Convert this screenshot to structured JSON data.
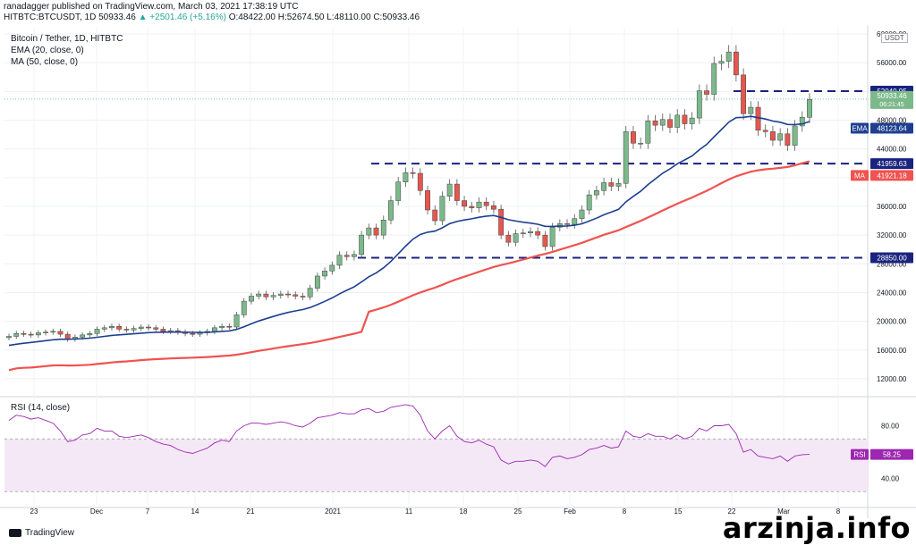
{
  "header": {
    "publish_line": "ranadagger published on TradingView.com, March 03, 2021 17:38:19 UTC",
    "symbol": "HITBTC:BTCUSDT, 1D",
    "price": "50933.46",
    "change": "▲ +2501.46 (+5.16%)",
    "ohlc": "O:48422.00 H:52674.50 L:48110.00 C:50933.46"
  },
  "legend": {
    "title": "Bitcoin / Tether, 1D, HITBTC",
    "ema": "EMA (20, close, 0)",
    "ma": "MA (50, close, 0)",
    "rsi": "RSI (14, close)"
  },
  "currency_badge": "USDT",
  "brand": "TradingView",
  "watermark": "arzinja.info",
  "colors": {
    "up": "#26a69a",
    "down": "#ef5350",
    "ema": "#2962ff",
    "ma": "#ef5350",
    "rsi": "#9c27b0",
    "level": "#1a237e"
  },
  "chart_data": {
    "type": "candlestick",
    "x_ticks": [
      "23",
      "Dec",
      "7",
      "14",
      "21",
      "2021",
      "11",
      "18",
      "25",
      "Feb",
      "8",
      "15",
      "22",
      "Mar",
      "8"
    ],
    "y_ticks": [
      12000,
      16000,
      20000,
      24000,
      28000,
      32000,
      36000,
      40000,
      44000,
      48000,
      52000,
      56000,
      60000
    ],
    "ylim": [
      10000,
      61000
    ],
    "price_labels": [
      {
        "label": "52040.95",
        "value": 52040.95,
        "kind": "level"
      },
      {
        "label": "50933.46",
        "value": 50933.46,
        "kind": "last",
        "time": "06:21:45"
      },
      {
        "label": "EMA",
        "value": 48123.64,
        "text": "48123.64",
        "kind": "ema"
      },
      {
        "label": "41959.63",
        "value": 41959.63,
        "kind": "level"
      },
      {
        "label": "MA",
        "value": 41921.18,
        "text": "41921.18",
        "kind": "ma"
      },
      {
        "label": "28850.00",
        "value": 28850.0,
        "kind": "level"
      }
    ],
    "support_resistance": [
      52040.95,
      41959.63,
      28850.0
    ],
    "closes": [
      17900,
      18300,
      18200,
      18100,
      18400,
      18500,
      18600,
      18200,
      17500,
      17800,
      18100,
      18300,
      18900,
      19100,
      19300,
      18900,
      18800,
      19000,
      19200,
      19100,
      18900,
      18600,
      18700,
      18500,
      18300,
      18200,
      18400,
      18600,
      19100,
      19300,
      19200,
      20900,
      22800,
      23500,
      23800,
      23400,
      23600,
      23800,
      23700,
      23500,
      23400,
      24600,
      26300,
      27000,
      27800,
      29200,
      29000,
      29300,
      32000,
      33000,
      32000,
      34100,
      36800,
      39400,
      40700,
      40600,
      38200,
      35500,
      34000,
      37400,
      39100,
      36800,
      36000,
      35800,
      36600,
      36100,
      35600,
      32000,
      31000,
      32200,
      32300,
      32500,
      32000,
      30400,
      33100,
      33600,
      33500,
      34300,
      35500,
      37600,
      38200,
      39300,
      38800,
      39200,
      46400,
      44800,
      44800,
      47900,
      47300,
      48100,
      47000,
      48700,
      47500,
      48300,
      52100,
      51600,
      55900,
      56200,
      57500,
      54300,
      48900,
      49800,
      46600,
      46400,
      45200,
      46100,
      44500,
      47200,
      48400,
      50900
    ],
    "ema20_end": 48123.64,
    "ma50_end": 41921.18,
    "rsi": {
      "name": "RSI (14, close)",
      "current": 58.25,
      "ticks": [
        40.0,
        60.0,
        80.0
      ],
      "ylim": [
        20,
        100
      ],
      "band": [
        30,
        70
      ],
      "values": [
        84,
        88,
        87,
        85,
        86,
        84,
        82,
        76,
        68,
        69,
        73,
        74,
        78,
        76,
        76,
        72,
        71,
        72,
        73,
        71,
        68,
        66,
        65,
        62,
        60,
        59,
        61,
        63,
        67,
        69,
        68,
        76,
        80,
        82,
        82,
        81,
        82,
        83,
        82,
        80,
        79,
        82,
        86,
        87,
        88,
        90,
        89,
        89,
        92,
        93,
        90,
        91,
        94,
        95,
        96,
        95,
        88,
        76,
        70,
        76,
        80,
        72,
        68,
        67,
        69,
        66,
        64,
        54,
        51,
        53,
        53,
        54,
        53,
        49,
        56,
        57,
        55,
        56,
        58,
        62,
        63,
        65,
        63,
        64,
        76,
        72,
        71,
        74,
        72,
        72,
        70,
        73,
        70,
        72,
        78,
        76,
        80,
        80,
        81,
        74,
        60,
        62,
        57,
        56,
        55,
        57,
        53,
        57,
        58,
        58.25
      ]
    }
  }
}
